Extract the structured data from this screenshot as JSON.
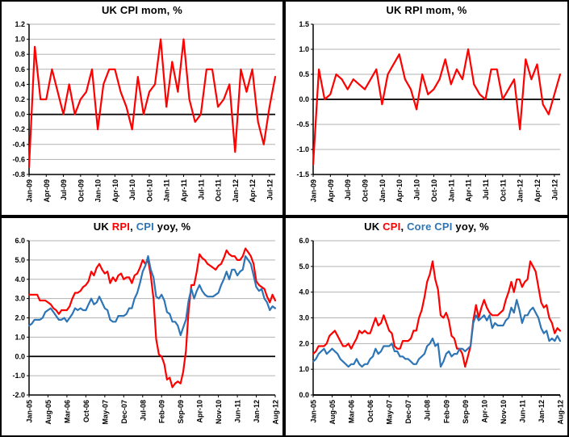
{
  "colors": {
    "red": "#FF0000",
    "blue": "#2E75B6",
    "grid": "#B3B3B3",
    "axis": "#000000",
    "background": "#FFFFFF"
  },
  "chart_data": [
    {
      "id": "uk-cpi-mom",
      "type": "line",
      "title_segments": [
        {
          "text": "UK CPI  mom, %",
          "color": "#000000"
        }
      ],
      "ylim": [
        -0.8,
        1.2
      ],
      "y_tick_labels": [
        "1.2",
        "1.0",
        "0.8",
        "0.6",
        "0.4",
        "0.2",
        "0.0",
        "-0.2",
        "-0.4",
        "-0.6",
        "-0.8"
      ],
      "x_tick_labels": [
        "Jan-09",
        "Apr-09",
        "Jul-09",
        "Oct-09",
        "Jan-10",
        "Apr-10",
        "Jul-10",
        "Oct-10",
        "Jan-11",
        "Apr-11",
        "Jul-11",
        "Oct-11",
        "Jan-12",
        "Apr-12",
        "Jul-12"
      ],
      "x_tick_every": 3,
      "frequency": "monthly",
      "series": [
        {
          "name": "UK CPI mom",
          "color": "#FF0000",
          "values": [
            -0.7,
            0.9,
            0.2,
            0.2,
            0.6,
            0.3,
            0.0,
            0.4,
            0.0,
            0.2,
            0.3,
            0.6,
            -0.2,
            0.4,
            0.6,
            0.6,
            0.3,
            0.1,
            -0.2,
            0.5,
            0.0,
            0.3,
            0.4,
            1.0,
            0.1,
            0.7,
            0.3,
            1.0,
            0.2,
            -0.1,
            0.0,
            0.6,
            0.6,
            0.1,
            0.2,
            0.4,
            -0.5,
            0.6,
            0.3,
            0.6,
            -0.1,
            -0.4,
            0.1,
            0.5
          ]
        }
      ]
    },
    {
      "id": "uk-rpi-mom",
      "type": "line",
      "title_segments": [
        {
          "text": "UK RPI mom, %",
          "color": "#000000"
        }
      ],
      "ylim": [
        -1.5,
        1.5
      ],
      "y_tick_labels": [
        "1.5",
        "1.0",
        "0.5",
        "0.0",
        "-0.5",
        "-1.0",
        "-1.5"
      ],
      "x_tick_labels": [
        "Jan-09",
        "Apr-09",
        "Jul-09",
        "Oct-09",
        "Jan-10",
        "Apr-10",
        "Jul-10",
        "Oct-10",
        "Jan-11",
        "Apr-11",
        "Jul-11",
        "Oct-11",
        "Jan-12",
        "Apr-12",
        "Jul-12"
      ],
      "x_tick_every": 3,
      "frequency": "monthly",
      "series": [
        {
          "name": "UK RPI mom",
          "color": "#FF0000",
          "values": [
            -1.3,
            0.6,
            0.0,
            0.1,
            0.5,
            0.4,
            0.2,
            0.4,
            0.3,
            0.2,
            0.4,
            0.6,
            -0.1,
            0.5,
            0.7,
            0.9,
            0.4,
            0.2,
            -0.2,
            0.5,
            0.1,
            0.2,
            0.4,
            0.8,
            0.3,
            0.6,
            0.4,
            1.0,
            0.3,
            0.1,
            0.0,
            0.6,
            0.6,
            0.0,
            0.2,
            0.4,
            -0.6,
            0.8,
            0.4,
            0.7,
            -0.1,
            -0.3,
            0.1,
            0.5
          ]
        }
      ]
    },
    {
      "id": "uk-rpi-cpi-yoy",
      "type": "line",
      "title_segments": [
        {
          "text": "UK ",
          "color": "#000000"
        },
        {
          "text": "RPI",
          "color": "#FF0000"
        },
        {
          "text": ", ",
          "color": "#000000"
        },
        {
          "text": "CPI",
          "color": "#2E75B6"
        },
        {
          "text": " yoy, %",
          "color": "#000000"
        }
      ],
      "ylim": [
        -2.0,
        6.0
      ],
      "y_tick_labels": [
        "6.0",
        "5.0",
        "4.0",
        "3.0",
        "2.0",
        "1.0",
        "0.0",
        "-1.0",
        "-2.0"
      ],
      "x_tick_labels": [
        "Jan-05",
        "Aug-05",
        "Mar-06",
        "Oct-06",
        "May-07",
        "Dec-07",
        "Jul-08",
        "Feb-09",
        "Sep-09",
        "Apr-10",
        "Nov-10",
        "Jun-11",
        "Jan-12",
        "Aug-12"
      ],
      "x_tick_every": 7,
      "frequency": "monthly",
      "series": [
        {
          "name": "UK RPI yoy",
          "color": "#FF0000",
          "values": [
            3.2,
            3.2,
            3.2,
            3.2,
            2.9,
            2.9,
            2.9,
            2.8,
            2.7,
            2.5,
            2.4,
            2.2,
            2.4,
            2.4,
            2.4,
            2.6,
            3.0,
            3.3,
            3.3,
            3.4,
            3.6,
            3.7,
            3.9,
            4.4,
            4.2,
            4.6,
            4.8,
            4.5,
            4.3,
            4.4,
            3.8,
            4.1,
            3.9,
            4.2,
            4.3,
            4.0,
            4.1,
            4.1,
            3.8,
            4.2,
            4.3,
            4.6,
            5.0,
            4.8,
            5.0,
            4.2,
            3.0,
            0.9,
            0.1,
            0.0,
            -0.4,
            -1.2,
            -1.1,
            -1.6,
            -1.4,
            -1.3,
            -1.4,
            -0.8,
            0.3,
            2.4,
            3.7,
            3.7,
            4.4,
            5.3,
            5.1,
            5.0,
            4.8,
            4.7,
            4.6,
            4.5,
            4.7,
            4.8,
            5.1,
            5.5,
            5.3,
            5.2,
            5.2,
            5.0,
            5.0,
            5.2,
            5.6,
            5.4,
            5.2,
            4.8,
            3.9,
            3.7,
            3.6,
            3.5,
            3.1,
            2.8,
            3.2,
            2.9
          ]
        },
        {
          "name": "UK CPI yoy",
          "color": "#2E75B6",
          "values": [
            1.6,
            1.7,
            1.9,
            1.9,
            1.9,
            2.0,
            2.3,
            2.4,
            2.5,
            2.3,
            2.1,
            1.9,
            1.9,
            2.0,
            1.8,
            2.0,
            2.2,
            2.5,
            2.4,
            2.5,
            2.4,
            2.4,
            2.7,
            3.0,
            2.7,
            2.8,
            3.1,
            2.8,
            2.5,
            2.4,
            1.9,
            1.8,
            1.8,
            2.1,
            2.1,
            2.1,
            2.2,
            2.5,
            2.5,
            3.0,
            3.3,
            3.8,
            4.4,
            4.7,
            5.2,
            4.5,
            4.1,
            3.1,
            3.0,
            3.2,
            2.9,
            2.3,
            2.2,
            1.8,
            1.8,
            1.6,
            1.1,
            1.5,
            1.9,
            2.9,
            3.5,
            3.0,
            3.4,
            3.7,
            3.4,
            3.2,
            3.1,
            3.1,
            3.1,
            3.2,
            3.3,
            3.7,
            4.0,
            4.4,
            4.0,
            4.5,
            4.5,
            4.2,
            4.4,
            4.5,
            5.2,
            5.0,
            4.8,
            4.2,
            3.6,
            3.4,
            3.5,
            3.0,
            2.8,
            2.4,
            2.6,
            2.5
          ]
        }
      ]
    },
    {
      "id": "uk-cpi-core-cpi-yoy",
      "type": "line",
      "title_segments": [
        {
          "text": "UK ",
          "color": "#000000"
        },
        {
          "text": "CPI",
          "color": "#FF0000"
        },
        {
          "text": ", ",
          "color": "#000000"
        },
        {
          "text": "Core CPI",
          "color": "#2E75B6"
        },
        {
          "text": " yoy, %",
          "color": "#000000"
        }
      ],
      "ylim": [
        0.0,
        6.0
      ],
      "y_tick_labels": [
        "6.0",
        "5.0",
        "4.0",
        "3.0",
        "2.0",
        "1.0",
        "0.0"
      ],
      "x_tick_labels": [
        "Jan-05",
        "Aug-05",
        "Mar-06",
        "Oct-06",
        "May-07",
        "Dec-07",
        "Jul-08",
        "Feb-09",
        "Sep-09",
        "Apr-10",
        "Nov-10",
        "Jun-11",
        "Jan-12",
        "Aug-12"
      ],
      "x_tick_every": 7,
      "frequency": "monthly",
      "series": [
        {
          "name": "UK CPI yoy",
          "color": "#FF0000",
          "values": [
            1.6,
            1.7,
            1.9,
            1.9,
            1.9,
            2.0,
            2.3,
            2.4,
            2.5,
            2.3,
            2.1,
            1.9,
            1.9,
            2.0,
            1.8,
            2.0,
            2.2,
            2.5,
            2.4,
            2.5,
            2.4,
            2.4,
            2.7,
            3.0,
            2.7,
            2.8,
            3.1,
            2.8,
            2.5,
            2.4,
            1.9,
            1.8,
            1.8,
            2.1,
            2.1,
            2.1,
            2.2,
            2.5,
            2.5,
            3.0,
            3.3,
            3.8,
            4.4,
            4.7,
            5.2,
            4.5,
            4.1,
            3.1,
            3.0,
            3.2,
            2.9,
            2.3,
            2.2,
            1.8,
            1.8,
            1.6,
            1.1,
            1.5,
            1.9,
            2.9,
            3.5,
            3.0,
            3.4,
            3.7,
            3.4,
            3.2,
            3.1,
            3.1,
            3.1,
            3.2,
            3.3,
            3.7,
            4.0,
            4.4,
            4.0,
            4.5,
            4.5,
            4.2,
            4.4,
            4.5,
            5.2,
            5.0,
            4.8,
            4.2,
            3.6,
            3.4,
            3.5,
            3.0,
            2.8,
            2.4,
            2.6,
            2.5
          ]
        },
        {
          "name": "UK Core CPI yoy",
          "color": "#2E75B6",
          "values": [
            1.3,
            1.4,
            1.6,
            1.7,
            1.8,
            1.6,
            1.7,
            1.8,
            1.7,
            1.6,
            1.4,
            1.3,
            1.2,
            1.1,
            1.2,
            1.2,
            1.4,
            1.2,
            1.1,
            1.2,
            1.2,
            1.4,
            1.5,
            1.8,
            1.6,
            1.7,
            1.9,
            1.9,
            1.9,
            2.0,
            1.7,
            1.7,
            1.5,
            1.5,
            1.4,
            1.4,
            1.3,
            1.2,
            1.2,
            1.4,
            1.5,
            1.6,
            1.9,
            2.0,
            2.2,
            1.9,
            2.0,
            1.1,
            1.3,
            1.6,
            1.7,
            1.5,
            1.6,
            1.6,
            1.8,
            1.8,
            1.7,
            1.8,
            1.9,
            2.8,
            3.1,
            2.9,
            3.0,
            3.1,
            2.9,
            3.1,
            2.6,
            2.8,
            2.7,
            2.7,
            2.7,
            2.9,
            3.0,
            3.4,
            3.2,
            3.7,
            3.3,
            2.8,
            3.1,
            3.1,
            3.3,
            3.4,
            3.2,
            3.0,
            2.6,
            2.4,
            2.5,
            2.1,
            2.2,
            2.1,
            2.3,
            2.1
          ]
        }
      ]
    }
  ]
}
